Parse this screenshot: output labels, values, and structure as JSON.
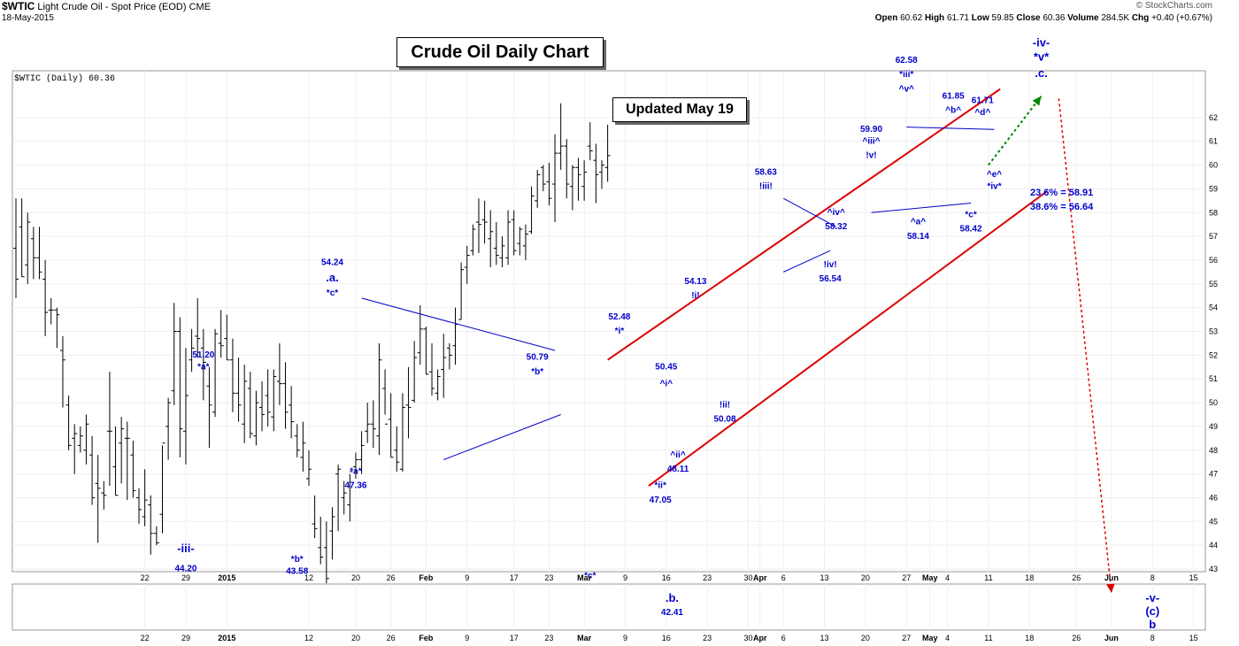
{
  "header": {
    "symbol": "$WTIC",
    "description": "Light Crude Oil - Spot Price (EOD)",
    "exchange": "CME",
    "date": "18-May-2015",
    "source": "© StockCharts.com",
    "open_label": "Open",
    "open": "60.62",
    "high_label": "High",
    "high": "61.71",
    "low_label": "Low",
    "low": "59.85",
    "close_label": "Close",
    "close": "60.36",
    "volume_label": "Volume",
    "volume": "284.5K",
    "chg_label": "Chg",
    "chg": "+0.40 (+0.67%)"
  },
  "legend": "$WTIC (Daily) 60.36",
  "title_box": "Crude Oil Daily Chart",
  "updated_box": "Updated May 19",
  "colors": {
    "price_bars": "#000000",
    "wave_labels": "#0000cc",
    "channel": "#dd0000",
    "triangle_lines": "#0000cc",
    "projection_up": "#008800",
    "projection_down": "#dd0000"
  },
  "chart_data": {
    "type": "ohlc",
    "ylim": [
      42,
      63
    ],
    "yticks": [
      43,
      44,
      45,
      46,
      47,
      48,
      49,
      50,
      51,
      52,
      53,
      54,
      55,
      56,
      57,
      58,
      59,
      60,
      61,
      62
    ],
    "xticks": [
      {
        "label": "22",
        "x": 22
      },
      {
        "label": "29",
        "x": 29
      },
      {
        "label": "2015",
        "x": 36
      },
      {
        "label": "12",
        "x": 50
      },
      {
        "label": "20",
        "x": 58
      },
      {
        "label": "26",
        "x": 64
      },
      {
        "label": "Feb",
        "x": 70
      },
      {
        "label": "9",
        "x": 77
      },
      {
        "label": "17",
        "x": 85
      },
      {
        "label": "23",
        "x": 91
      },
      {
        "label": "Mar",
        "x": 97
      },
      {
        "label": "9",
        "x": 104
      },
      {
        "label": "16",
        "x": 111
      },
      {
        "label": "23",
        "x": 118
      },
      {
        "label": "30",
        "x": 125
      },
      {
        "label": "Apr",
        "x": 127
      },
      {
        "label": "6",
        "x": 131
      },
      {
        "label": "13",
        "x": 138
      },
      {
        "label": "20",
        "x": 145
      },
      {
        "label": "27",
        "x": 152
      },
      {
        "label": "May",
        "x": 156
      },
      {
        "label": "4",
        "x": 159
      },
      {
        "label": "11",
        "x": 166
      },
      {
        "label": "18",
        "x": 173
      },
      {
        "label": "26",
        "x": 181
      },
      {
        "label": "Jun",
        "x": 187
      },
      {
        "label": "8",
        "x": 194
      },
      {
        "label": "15",
        "x": 201
      }
    ],
    "bars": [
      [
        56.5,
        58.6,
        54.4,
        55.2
      ],
      [
        57.4,
        58.6,
        55.3,
        55.3
      ],
      [
        55.8,
        58.0,
        55.0,
        57.6
      ],
      [
        56.9,
        57.4,
        55.2,
        56.1
      ],
      [
        56.1,
        57.4,
        55.2,
        55.5
      ],
      [
        55.2,
        56.0,
        52.8,
        53.8
      ],
      [
        53.9,
        54.4,
        53.3,
        53.9
      ],
      [
        53.9,
        54.0,
        52.3,
        53.7
      ],
      [
        52.2,
        52.8,
        49.8,
        51.8
      ],
      [
        49.9,
        50.3,
        48.0,
        48.2
      ],
      [
        48.5,
        49.1,
        47.0,
        48.7
      ],
      [
        48.2,
        49.0,
        47.9,
        48.6
      ],
      [
        48.0,
        49.5,
        47.4,
        49.1
      ],
      [
        47.8,
        48.6,
        45.7,
        46.0
      ],
      [
        46.6,
        47.8,
        44.1,
        46.4
      ],
      [
        46.2,
        46.7,
        45.5,
        46.1
      ],
      [
        48.8,
        51.3,
        46.5,
        48.8
      ],
      [
        47.3,
        49.0,
        46.1,
        46.1
      ],
      [
        48.3,
        49.4,
        46.6,
        48.9
      ],
      [
        48.5,
        49.2,
        45.9,
        48.5
      ],
      [
        47.8,
        48.4,
        46.0,
        46.3
      ],
      [
        46.0,
        46.4,
        44.9,
        45.5
      ],
      [
        45.2,
        47.2,
        44.8,
        45.9
      ],
      [
        45.7,
        46.1,
        43.6,
        44.5
      ],
      [
        44.5,
        44.8,
        44.0,
        44.1
      ],
      [
        45.3,
        48.2,
        44.5,
        48.3
      ],
      [
        49.0,
        50.2,
        47.6,
        50.0
      ],
      [
        50.5,
        54.2,
        49.9,
        53.0
      ],
      [
        53.0,
        53.6,
        47.7,
        48.9
      ],
      [
        48.8,
        52.3,
        47.4,
        50.3
      ],
      [
        51.8,
        53.1,
        51.3,
        52.3
      ],
      [
        52.8,
        54.4,
        51.9,
        52.7
      ],
      [
        52.3,
        53.1,
        50.1,
        51.7
      ],
      [
        50.7,
        51.5,
        48.1,
        49.9
      ],
      [
        49.6,
        53.1,
        49.4,
        52.9
      ],
      [
        52.5,
        53.9,
        51.9,
        52.4
      ],
      [
        52.7,
        53.7,
        51.8,
        51.8
      ],
      [
        51.8,
        52.7,
        49.6,
        50.4
      ],
      [
        50.4,
        51.9,
        49.2,
        49.9
      ],
      [
        49.1,
        51.6,
        48.3,
        50.9
      ],
      [
        50.6,
        51.3,
        48.5,
        48.7
      ],
      [
        48.6,
        50.5,
        48.2,
        50.0
      ],
      [
        49.8,
        50.9,
        48.8,
        49.5
      ],
      [
        50.3,
        51.4,
        49.0,
        49.6
      ],
      [
        49.4,
        51.4,
        48.8,
        51.1
      ],
      [
        50.9,
        52.5,
        49.9,
        50.8
      ],
      [
        50.8,
        51.7,
        48.9,
        49.6
      ],
      [
        49.9,
        50.7,
        48.5,
        49.2
      ],
      [
        48.6,
        49.1,
        47.7,
        48.0
      ],
      [
        47.7,
        49.2,
        47.1,
        48.3
      ],
      [
        46.8,
        48.0,
        46.5,
        47.2
      ],
      [
        44.9,
        46.1,
        44.3,
        44.7
      ],
      [
        43.9,
        45.2,
        43.2,
        43.5
      ],
      [
        43.9,
        45.0,
        42.4,
        42.6
      ],
      [
        44.6,
        45.6,
        43.4,
        45.2
      ],
      [
        47.0,
        47.4,
        44.6,
        47.2
      ],
      [
        46.0,
        46.7,
        45.3,
        46.2
      ],
      [
        45.7,
        47.0,
        45.0,
        47.1
      ],
      [
        47.3,
        47.9,
        46.8,
        47.6
      ],
      [
        47.6,
        48.8,
        47.0,
        48.2
      ],
      [
        48.8,
        50.0,
        48.3,
        49.1
      ],
      [
        49.1,
        50.1,
        48.1,
        48.9
      ],
      [
        48.6,
        52.5,
        47.8,
        51.8
      ],
      [
        50.6,
        51.4,
        49.5,
        49.1
      ],
      [
        49.3,
        50.4,
        47.7,
        47.7
      ],
      [
        48.0,
        49.0,
        47.1,
        47.5
      ],
      [
        47.2,
        50.4,
        47.1,
        49.8
      ],
      [
        49.9,
        51.5,
        48.5,
        49.8
      ],
      [
        50.1,
        52.6,
        50.0,
        51.9
      ],
      [
        52.1,
        54.1,
        51.6,
        53.1
      ],
      [
        53.1,
        53.2,
        51.2,
        51.2
      ],
      [
        51.3,
        52.5,
        50.3,
        50.6
      ],
      [
        50.4,
        51.4,
        50.1,
        51.1
      ],
      [
        51.4,
        52.9,
        50.2,
        51.9
      ],
      [
        52.3,
        52.5,
        51.4,
        52.0
      ],
      [
        52.4,
        54.0,
        51.6,
        53.3
      ],
      [
        53.5,
        55.9,
        53.5,
        55.6
      ],
      [
        55.7,
        56.6,
        55.0,
        56.2
      ],
      [
        56.4,
        57.5,
        56.2,
        57.3
      ],
      [
        57.6,
        58.6,
        56.3,
        57.5
      ],
      [
        57.7,
        58.5,
        56.7,
        57.6
      ],
      [
        56.9,
        58.1,
        55.7,
        57.2
      ],
      [
        56.5,
        57.6,
        55.8,
        56.2
      ],
      [
        56.1,
        57.0,
        55.7,
        56.6
      ],
      [
        56.1,
        58.1,
        55.8,
        57.6
      ],
      [
        57.7,
        58.1,
        56.2,
        56.4
      ],
      [
        56.7,
        57.4,
        56.2,
        57.3
      ],
      [
        56.6,
        57.5,
        56.0,
        57.1
      ],
      [
        57.2,
        59.1,
        57.1,
        58.7
      ],
      [
        58.5,
        59.8,
        58.2,
        59.6
      ],
      [
        59.9,
        60.0,
        58.9,
        59.2
      ],
      [
        59.3,
        60.1,
        58.3,
        58.6
      ],
      [
        59.2,
        61.3,
        57.6,
        60.5
      ],
      [
        60.5,
        62.6,
        59.8,
        60.8
      ],
      [
        60.8,
        61.1,
        58.6,
        59.2
      ],
      [
        59.1,
        60.0,
        58.1,
        59.9
      ],
      [
        59.9,
        60.3,
        58.5,
        59.6
      ],
      [
        59.1,
        60.2,
        58.5,
        59.7
      ],
      [
        60.8,
        61.8,
        60.2,
        60.6
      ],
      [
        60.2,
        60.9,
        58.4,
        59.6
      ],
      [
        59.7,
        60.2,
        59.0,
        60.0
      ],
      [
        59.9,
        61.7,
        59.3,
        60.4
      ]
    ],
    "trendlines": [
      {
        "style": "channel",
        "points": [
          [
            101,
            51.8
          ],
          [
            168,
            63.2
          ]
        ]
      },
      {
        "style": "channel",
        "points": [
          [
            108,
            46.5
          ],
          [
            176,
            58.9
          ]
        ]
      },
      {
        "style": "triangle",
        "points": [
          [
            59,
            54.4
          ],
          [
            92,
            52.2
          ]
        ]
      },
      {
        "style": "triangle",
        "points": [
          [
            73,
            47.6
          ],
          [
            93,
            49.5
          ]
        ]
      },
      {
        "style": "triangle",
        "points": [
          [
            131,
            58.6
          ],
          [
            140,
            57.4
          ]
        ]
      },
      {
        "style": "triangle",
        "points": [
          [
            131,
            55.5
          ],
          [
            139,
            56.4
          ]
        ]
      },
      {
        "style": "triangle",
        "points": [
          [
            152,
            61.6
          ],
          [
            167,
            61.5
          ]
        ]
      },
      {
        "style": "triangle",
        "points": [
          [
            146,
            58.0
          ],
          [
            163,
            58.4
          ]
        ]
      },
      {
        "style": "projection-up",
        "points": [
          [
            166,
            60.0
          ],
          [
            175,
            62.9
          ]
        ]
      },
      {
        "style": "projection-down",
        "points": [
          [
            178,
            62.8
          ],
          [
            187,
            42
          ]
        ]
      }
    ],
    "annotations": [
      {
        "text": "-iii-",
        "x": 29,
        "y": 43.7,
        "big": true
      },
      {
        "text": "44.20",
        "x": 29,
        "y": 42.9
      },
      {
        "text": "51.20",
        "x": 32,
        "y": 51.9
      },
      {
        "text": "*a*",
        "x": 32,
        "y": 51.4
      },
      {
        "text": "*b*",
        "x": 48,
        "y": 43.3
      },
      {
        "text": "43.58",
        "x": 48,
        "y": 42.8
      },
      {
        "text": "54.24",
        "x": 54,
        "y": 55.8
      },
      {
        "text": ".a.",
        "x": 54,
        "y": 55.1,
        "big": true
      },
      {
        "text": "*c*",
        "x": 54,
        "y": 54.5
      },
      {
        "text": "*a*",
        "x": 58,
        "y": 47.0
      },
      {
        "text": "47.36",
        "x": 58,
        "y": 46.4
      },
      {
        "text": "50.79",
        "x": 89,
        "y": 51.8
      },
      {
        "text": "*b*",
        "x": 89,
        "y": 51.2
      },
      {
        "text": "*c*",
        "x": 98,
        "y": 42.6
      },
      {
        "text": "52.48",
        "x": 103,
        "y": 53.5
      },
      {
        "text": "*i*",
        "x": 103,
        "y": 52.9
      },
      {
        "text": "50.45",
        "x": 111,
        "y": 51.4
      },
      {
        "text": "^i^",
        "x": 111,
        "y": 50.7
      },
      {
        "text": "^ii^",
        "x": 113,
        "y": 47.7
      },
      {
        "text": "48.11",
        "x": 113,
        "y": 47.1
      },
      {
        "text": "*ii*",
        "x": 110,
        "y": 46.4
      },
      {
        "text": "47.05",
        "x": 110,
        "y": 45.8
      },
      {
        "text": "54.13",
        "x": 116,
        "y": 55.0
      },
      {
        "text": "!i!",
        "x": 116,
        "y": 54.4
      },
      {
        "text": "!ii!",
        "x": 121,
        "y": 49.8
      },
      {
        "text": "50.08",
        "x": 121,
        "y": 49.2
      },
      {
        "text": "58.63",
        "x": 128,
        "y": 59.6
      },
      {
        "text": "!iii!",
        "x": 128,
        "y": 59.0
      },
      {
        "text": "^iv^",
        "x": 140,
        "y": 57.9
      },
      {
        "text": "58.32",
        "x": 140,
        "y": 57.3
      },
      {
        "text": "!iv!",
        "x": 139,
        "y": 55.7
      },
      {
        "text": "56.54",
        "x": 139,
        "y": 55.1
      },
      {
        "text": "59.90",
        "x": 146,
        "y": 61.4
      },
      {
        "text": "^iii^",
        "x": 146,
        "y": 60.9
      },
      {
        "text": "!v!",
        "x": 146,
        "y": 60.3
      },
      {
        "text": "62.58",
        "x": 152,
        "y": 64.3
      },
      {
        "text": "*iii*",
        "x": 152,
        "y": 63.7
      },
      {
        "text": "^v^",
        "x": 152,
        "y": 63.1
      },
      {
        "text": "^a^",
        "x": 154,
        "y": 57.5
      },
      {
        "text": "58.14",
        "x": 154,
        "y": 56.9
      },
      {
        "text": "61.85",
        "x": 160,
        "y": 62.8
      },
      {
        "text": "^b^",
        "x": 160,
        "y": 62.2
      },
      {
        "text": "*c*",
        "x": 163,
        "y": 57.8
      },
      {
        "text": "58.42",
        "x": 163,
        "y": 57.2
      },
      {
        "text": "61.71",
        "x": 165,
        "y": 62.6
      },
      {
        "text": "^d^",
        "x": 165,
        "y": 62.1
      },
      {
        "text": "^e^",
        "x": 167,
        "y": 59.5
      },
      {
        "text": "*iv*",
        "x": 167,
        "y": 59.0
      },
      {
        "text": "-iv-",
        "x": 175,
        "y": 65.0,
        "big": true
      },
      {
        "text": "*v*",
        "x": 175,
        "y": 64.4,
        "big": true
      },
      {
        "text": ".c.",
        "x": 175,
        "y": 63.7,
        "big": true
      }
    ],
    "fib_notes": [
      "23.6% = 58.91",
      "38.6% = 56.64"
    ],
    "lower_panel": [
      {
        "text": ".b.",
        "x": 112,
        "row": 0,
        "big": true
      },
      {
        "text": "42.41",
        "x": 112,
        "row": 1
      },
      {
        "text": "-v-",
        "x": 194,
        "row": 0,
        "big": true
      },
      {
        "text": "(c)",
        "x": 194,
        "row": 1,
        "big": true
      },
      {
        "text": "b",
        "x": 194,
        "row": 2,
        "big": true
      }
    ]
  }
}
